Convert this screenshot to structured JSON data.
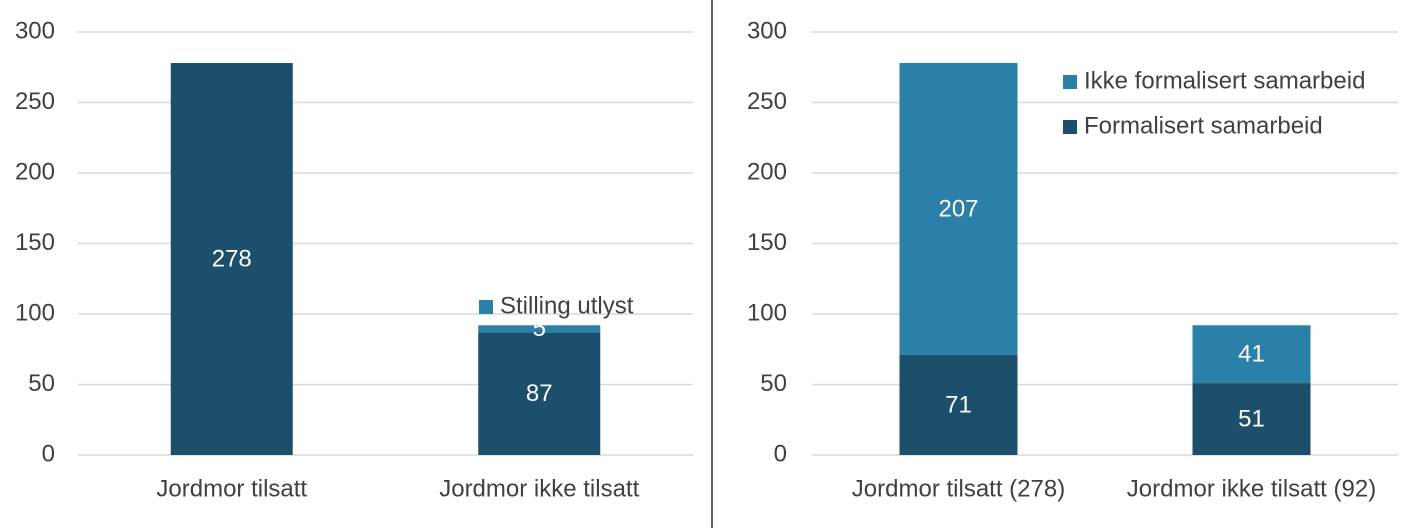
{
  "chart_data": [
    {
      "type": "bar",
      "stacked": true,
      "grid": true,
      "categories": [
        "Jordmor tilsatt",
        "Jordmor ikke tilsatt"
      ],
      "series": [
        {
          "color": "#1b4f6b",
          "values": [
            278,
            87
          ]
        },
        {
          "name": "Stilling utlyst",
          "color": "#2a80a8",
          "values": [
            null,
            5
          ]
        }
      ],
      "ylim": [
        0,
        300
      ],
      "yticks": [
        0,
        50,
        100,
        150,
        200,
        250,
        300
      ]
    },
    {
      "type": "bar",
      "stacked": true,
      "grid": true,
      "categories": [
        "Jordmor tilsatt (278)",
        "Jordmor ikke tilsatt (92)"
      ],
      "series": [
        {
          "name": "Formalisert samarbeid",
          "color": "#1b4f6b",
          "values": [
            71,
            51
          ]
        },
        {
          "name": "Ikke formalisert samarbeid",
          "color": "#2a80a8",
          "values": [
            207,
            41
          ]
        }
      ],
      "ylim": [
        0,
        300
      ],
      "yticks": [
        0,
        50,
        100,
        150,
        200,
        250,
        300
      ]
    }
  ]
}
